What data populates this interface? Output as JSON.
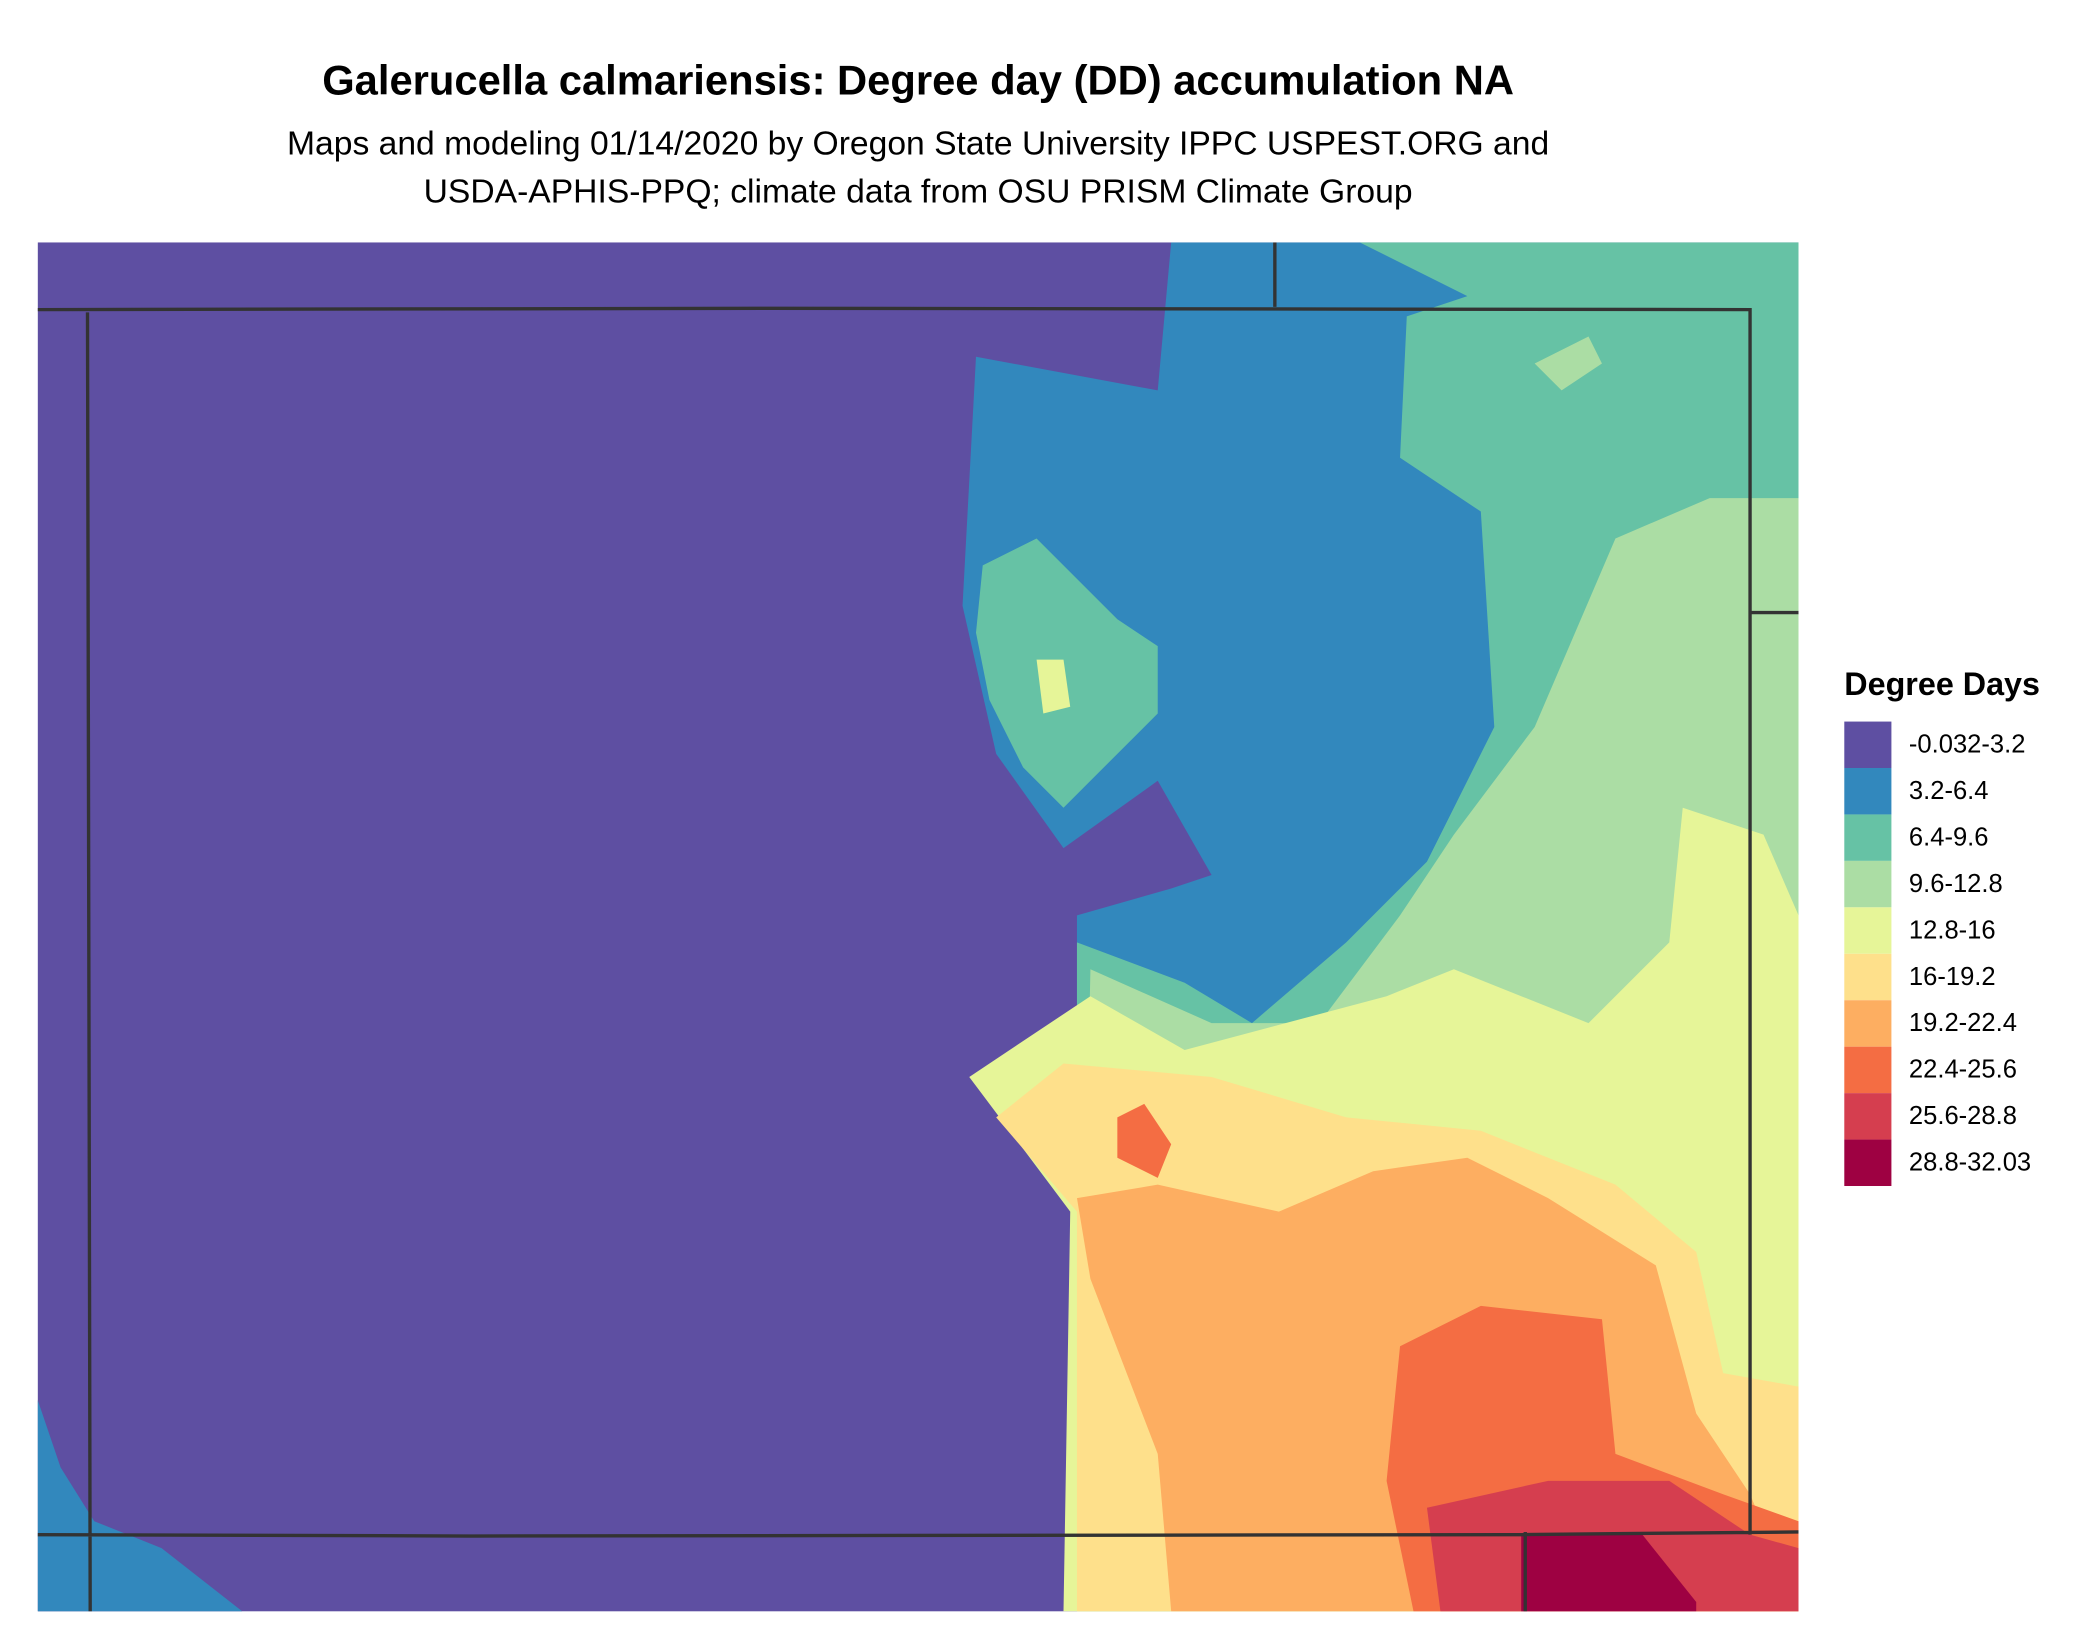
{
  "header": {
    "title": "Galerucella calmariensis: Degree day (DD) accumulation NA",
    "subtitle_lines": [
      "Maps and modeling 01/14/2020 by Oregon State University IPPC USPEST.ORG and",
      "USDA-APHIS-PPQ; climate data from OSU PRISM Climate Group"
    ]
  },
  "legend": {
    "title": "Degree Days",
    "items": [
      {
        "label": "-0.032-3.2",
        "color": "#5E4FA2"
      },
      {
        "label": "3.2-6.4",
        "color": "#3288BD"
      },
      {
        "label": "6.4-9.6",
        "color": "#66C2A5"
      },
      {
        "label": "9.6-12.8",
        "color": "#ABDDA4"
      },
      {
        "label": "12.8-16",
        "color": "#E6F598"
      },
      {
        "label": "16-19.2",
        "color": "#FEE08B"
      },
      {
        "label": "19.2-22.4",
        "color": "#FDAE61"
      },
      {
        "label": "22.4-25.6",
        "color": "#F46D43"
      },
      {
        "label": "25.6-28.8",
        "color": "#D53E4F"
      },
      {
        "label": "28.8-32.03",
        "color": "#9E0142"
      }
    ]
  }
}
